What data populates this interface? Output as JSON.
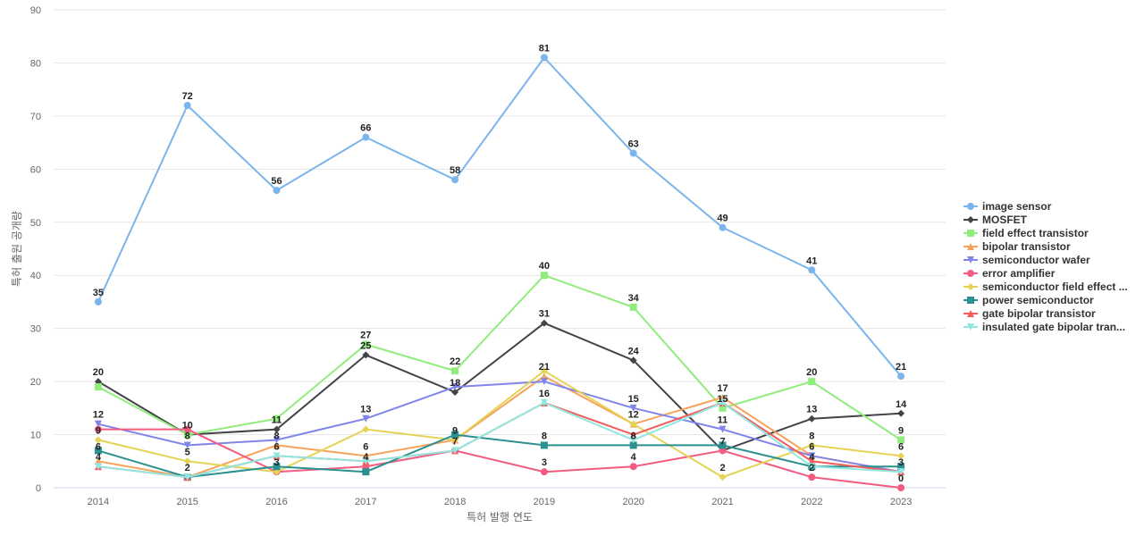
{
  "chart_data": {
    "type": "line",
    "xlabel": "특허 발행 연도",
    "ylabel": "특허 출원 공개량",
    "ylim": [
      0,
      90
    ],
    "yticks": [
      0,
      10,
      20,
      30,
      40,
      50,
      60,
      70,
      80,
      90
    ],
    "grid": true,
    "legend_position": "right",
    "x": [
      "2014",
      "2015",
      "2016",
      "2017",
      "2018",
      "2019",
      "2020",
      "2021",
      "2022",
      "2023"
    ],
    "series": [
      {
        "name": "image sensor",
        "color": "#7cb5ec",
        "marker": "circle",
        "values": [
          35,
          72,
          56,
          66,
          58,
          81,
          63,
          49,
          41,
          21
        ]
      },
      {
        "name": "MOSFET",
        "color": "#434348",
        "marker": "diamond",
        "values": [
          20,
          10,
          11,
          25,
          18,
          31,
          24,
          7,
          13,
          14
        ]
      },
      {
        "name": "field effect transistor",
        "color": "#90ed7d",
        "marker": "square",
        "values": [
          19,
          10,
          13,
          27,
          22,
          40,
          34,
          15,
          20,
          9
        ]
      },
      {
        "name": "bipolar transistor",
        "color": "#f7a35c",
        "marker": "triangle",
        "values": [
          5,
          2,
          8,
          6,
          9,
          21,
          12,
          17,
          6,
          3
        ]
      },
      {
        "name": "semiconductor wafer",
        "color": "#8085e9",
        "marker": "triangle-down",
        "values": [
          12,
          8,
          9,
          13,
          19,
          20,
          15,
          11,
          6,
          3
        ]
      },
      {
        "name": "error amplifier",
        "color": "#f15c80",
        "marker": "circle",
        "values": [
          11,
          11,
          3,
          4,
          7,
          3,
          4,
          7,
          2,
          0
        ]
      },
      {
        "name": "semiconductor field effect ...",
        "color": "#e4d354",
        "marker": "diamond",
        "values": [
          9,
          5,
          3,
          11,
          9,
          22,
          12,
          2,
          8,
          6
        ]
      },
      {
        "name": "power semiconductor",
        "color": "#2b908f",
        "marker": "square",
        "values": [
          7,
          2,
          4,
          3,
          10,
          8,
          8,
          8,
          4,
          4
        ]
      },
      {
        "name": "gate bipolar transistor",
        "color": "#f45b5b",
        "marker": "triangle",
        "values": [
          4,
          2,
          6,
          5,
          7,
          16,
          10,
          16,
          5,
          3
        ]
      },
      {
        "name": "insulated gate bipolar tran...",
        "color": "#91e8e1",
        "marker": "triangle-down",
        "values": [
          4,
          2,
          6,
          5,
          7,
          16,
          9,
          16,
          4,
          3
        ]
      }
    ],
    "data_labels": [
      {
        "x": "2014",
        "labels": [
          "35",
          "20",
          "12",
          "9",
          "6",
          "4"
        ]
      },
      {
        "x": "2015",
        "labels": [
          "72",
          "10",
          "8",
          "5",
          "2"
        ]
      },
      {
        "x": "2016",
        "labels": [
          "56",
          "11",
          "8",
          "6",
          "3"
        ]
      },
      {
        "x": "2017",
        "labels": [
          "66",
          "27",
          "25",
          "13",
          "6",
          "4"
        ]
      },
      {
        "x": "2018",
        "labels": [
          "58",
          "22",
          "18",
          "9",
          "7"
        ]
      },
      {
        "x": "2019",
        "labels": [
          "81",
          "40",
          "31",
          "21",
          "16",
          "8",
          "3"
        ]
      },
      {
        "x": "2020",
        "labels": [
          "63",
          "34",
          "24",
          "15",
          "12",
          "8",
          "4"
        ]
      },
      {
        "x": "2021",
        "labels": [
          "49",
          "17",
          "15",
          "11",
          "7",
          "2"
        ]
      },
      {
        "x": "2022",
        "labels": [
          "41",
          "20",
          "13",
          "8",
          "6",
          "4",
          "2"
        ]
      },
      {
        "x": "2023",
        "labels": [
          "21",
          "14",
          "9",
          "6",
          "3",
          "0"
        ]
      }
    ]
  }
}
